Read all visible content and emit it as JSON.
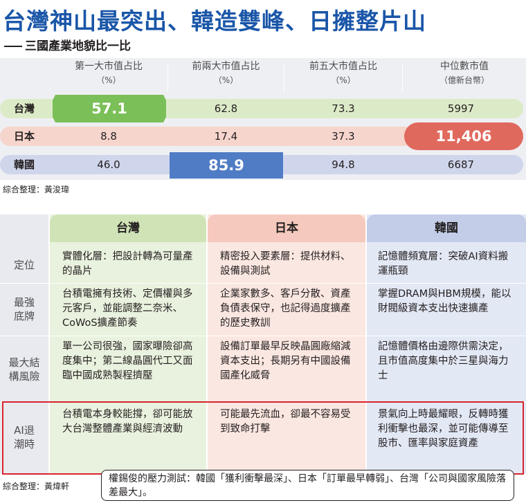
{
  "title": "台灣神山最突出、韓造雙峰、日擁整片山",
  "subtitle": "三國產業地貌比一比",
  "ranking": {
    "headers": [
      {
        "label": "第一大市值占比",
        "unit": "（%）"
      },
      {
        "label": "前兩大市值占比",
        "unit": "（%）"
      },
      {
        "label": "前五大市值占比",
        "unit": "（%）"
      },
      {
        "label": "中位數市值",
        "unit": "（億新台幣）"
      }
    ],
    "rows": [
      {
        "country": "台灣",
        "values": [
          "57.1",
          "62.8",
          "73.3",
          "5997"
        ],
        "highlight_index": 0,
        "color": "#7bbf58",
        "bar_color": "#dcebc7"
      },
      {
        "country": "日本",
        "values": [
          "8.8",
          "17.4",
          "37.3",
          "11,406"
        ],
        "highlight_index": 3,
        "color": "#e0695e",
        "bar_color": "#f6d5cc"
      },
      {
        "country": "韓國",
        "values": [
          "46.0",
          "85.9",
          "94.8",
          "6687"
        ],
        "highlight_index": 1,
        "color": "#4f7cc4",
        "bar_color": "#cfd6ec"
      }
    ],
    "credit": "綜合整理：黃浚瑋"
  },
  "compare": {
    "columns": [
      {
        "name": "台灣",
        "head_color": "#cfe3b6",
        "body_color": "#e9f2de"
      },
      {
        "name": "日本",
        "head_color": "#f5c9bd",
        "body_color": "#fbe7e1"
      },
      {
        "name": "韓國",
        "head_color": "#c3cde8",
        "body_color": "#e3e8f5"
      }
    ],
    "rows": [
      {
        "label": "定位",
        "cells": [
          "實體化層：把設計轉為可量產的晶片",
          "精密投入要素層：提供材料、設備與測試",
          "記憶體頻寬層：突破AI資料搬運瓶頸"
        ]
      },
      {
        "label": "最強底牌",
        "cells": [
          "台積電擁有技術、定價權與多元客戶，並能調整二奈米、CoWoS擴產節奏",
          "企業家數多、客戶分散、資產負債表保守，也記得過度擴產的歷史教訓",
          "掌握DRAM與HBM規模，能以財閥級資本支出快速擴產"
        ]
      },
      {
        "label": "最大結構風險",
        "cells": [
          "單一公司很強，國家曝險卻高度集中；第二線晶圓代工又面臨中國成熟製程擠壓",
          "設備訂單最早反映晶圓廠縮減資本支出；長期另有中國設備國產化威脅",
          "記憶體價格由邊際供需決定，且市值高度集中於三星與海力士"
        ]
      },
      {
        "label": "AI退潮時",
        "cells": [
          "台積電本身較能撐，卻可能放大台灣整體產業與經濟波動",
          "可能最先流血，卻最不容易受到致命打擊",
          "景氣向上時最耀眼，反轉時獲利衝擊也最深，並可能傳導至股市、匯率與家庭資產"
        ]
      }
    ],
    "credit": "綜合整理：黃煒軒",
    "note": "權錫俊的壓力測試：韓國「獲利衝擊最深」、日本「訂單最早轉弱」、台灣「公司與國家風險落差最大」。"
  }
}
